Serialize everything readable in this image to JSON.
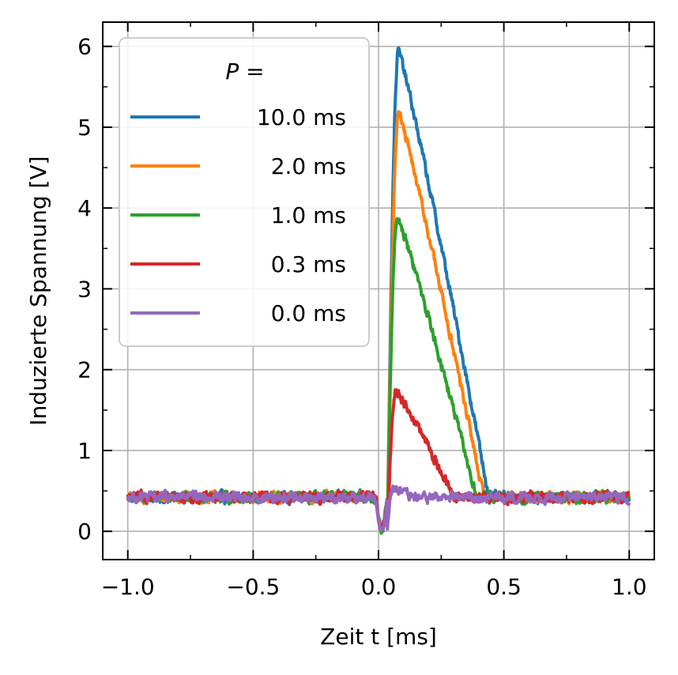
{
  "chart_data": {
    "type": "line",
    "title": "",
    "xlabel": "Zeit t [ms]",
    "ylabel": "Induzierte Spannung [V]",
    "xlim": [
      -1.1,
      1.1
    ],
    "ylim": [
      -0.35,
      6.3
    ],
    "x_ticks": [
      -1.0,
      -0.5,
      0.0,
      0.5,
      1.0
    ],
    "x_tick_labels": [
      "−1.0",
      "−0.5",
      "0.0",
      "0.5",
      "1.0"
    ],
    "y_ticks": [
      0,
      1,
      2,
      3,
      4,
      5,
      6
    ],
    "y_tick_labels": [
      "0",
      "1",
      "2",
      "3",
      "4",
      "5",
      "6"
    ],
    "grid": true,
    "legend": {
      "title": "P =",
      "placement": "top-left"
    },
    "series": [
      {
        "name": "10.0 ms",
        "color": "#1f77b4",
        "baseline": 0.42,
        "dip": 0.02,
        "rise_start": 0.035,
        "peak_x": 0.08,
        "peak": 5.95,
        "end_x": 0.44
      },
      {
        "name": "2.0 ms",
        "color": "#ff7f0e",
        "baseline": 0.42,
        "dip": 0.02,
        "rise_start": 0.035,
        "peak_x": 0.08,
        "peak": 5.18,
        "end_x": 0.42
      },
      {
        "name": "1.0 ms",
        "color": "#2ca02c",
        "baseline": 0.42,
        "dip": 0.02,
        "rise_start": 0.035,
        "peak_x": 0.075,
        "peak": 3.9,
        "end_x": 0.39
      },
      {
        "name": "0.3 ms",
        "color": "#d62728",
        "baseline": 0.42,
        "dip": 0.02,
        "rise_start": 0.035,
        "peak_x": 0.07,
        "peak": 1.75,
        "end_x": 0.3
      },
      {
        "name": "0.0 ms",
        "color": "#9467bd",
        "baseline": 0.42,
        "dip": 0.02,
        "rise_start": 0.035,
        "peak_x": 0.06,
        "peak": 0.55,
        "end_x": 0.12
      }
    ]
  }
}
